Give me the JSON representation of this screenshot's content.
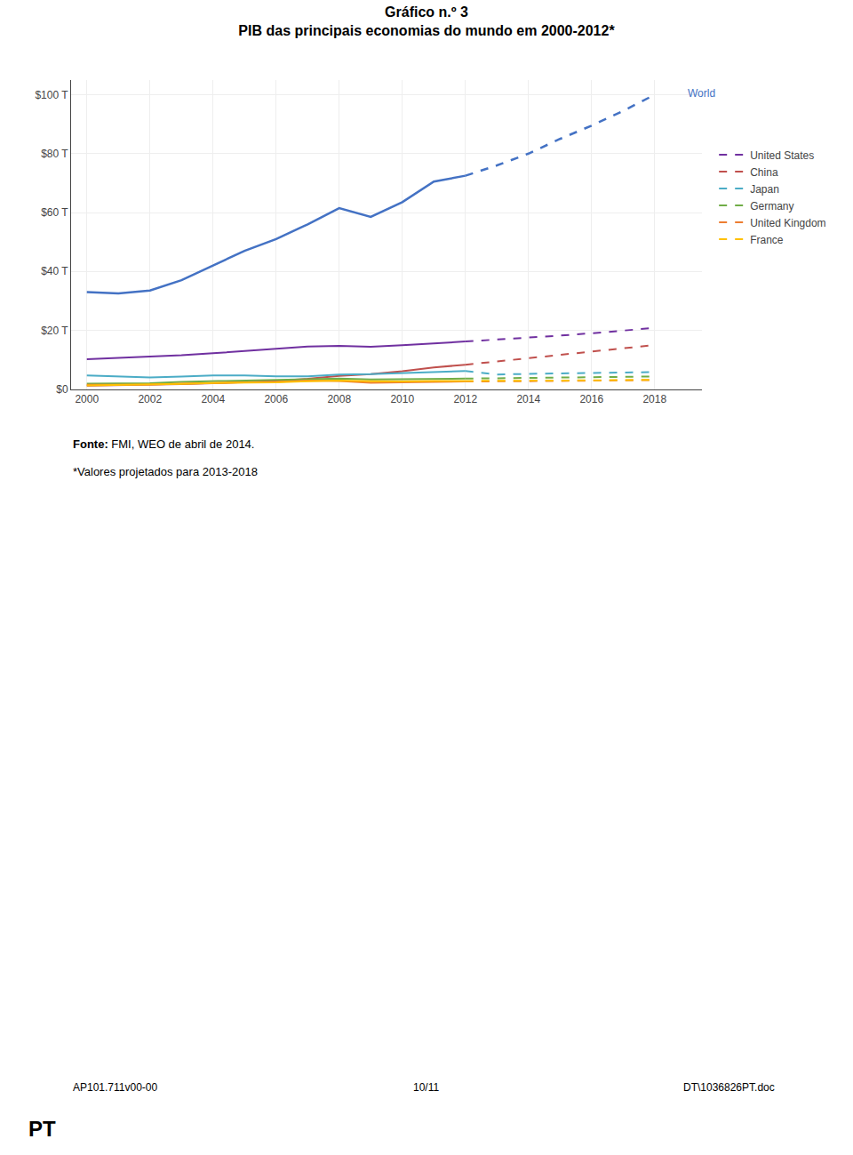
{
  "chart_data": {
    "type": "line",
    "title": "Gráfico n.º 3",
    "subtitle": "PIB das principais economias do mundo em 2000-2012*",
    "source_label": "Fonte:",
    "source": " FMI, WEO de abril de 2014.",
    "note": "*Valores projetados para 2013-2018",
    "footer_left": "AP101.711v00-00",
    "footer_center": "10/11",
    "footer_right": "DT\\1036826PT.doc",
    "footer_bottom": "PT",
    "x": [
      2000,
      2001,
      2002,
      2003,
      2004,
      2005,
      2006,
      2007,
      2008,
      2009,
      2010,
      2011,
      2012,
      2013,
      2014,
      2015,
      2016,
      2017,
      2018
    ],
    "series": [
      {
        "color": "#4472C4",
        "line_style": "solid",
        "values": [
          33.0,
          32.5,
          33.5,
          37.0,
          42.0,
          47.0,
          51.0,
          56.0,
          61.5,
          58.5,
          63.5,
          70.5,
          72.5,
          null,
          null,
          null,
          null,
          null,
          null
        ]
      },
      {
        "color": "#4472C4",
        "line_style": "dashed",
        "values": [
          null,
          null,
          null,
          null,
          null,
          null,
          null,
          null,
          null,
          null,
          null,
          null,
          72.5,
          76.0,
          80.0,
          85.0,
          89.5,
          94.5,
          100.0
        ]
      },
      {
        "name": "United States",
        "color": "#7030A0",
        "line_style": "solid",
        "values": [
          10.2,
          10.6,
          10.9,
          11.5,
          12.2,
          13.0,
          13.8,
          14.5,
          14.7,
          14.4,
          14.9,
          15.5,
          16.2,
          null,
          null,
          null,
          null,
          null,
          null
        ]
      },
      {
        "name": "United States",
        "color": "#7030A0",
        "line_style": "dashed",
        "values": [
          null,
          null,
          null,
          null,
          null,
          null,
          null,
          null,
          null,
          null,
          null,
          null,
          16.2,
          16.8,
          17.5,
          18.2,
          19.0,
          19.8,
          20.8
        ]
      },
      {
        "name": "China",
        "color": "#C0504D",
        "line_style": "solid",
        "values": [
          1.2,
          1.3,
          1.5,
          1.7,
          2.0,
          2.3,
          2.8,
          3.5,
          4.5,
          5.1,
          6.1,
          7.4,
          8.3,
          null,
          null,
          null,
          null,
          null,
          null
        ]
      },
      {
        "name": "China",
        "color": "#C0504D",
        "line_style": "dashed",
        "values": [
          null,
          null,
          null,
          null,
          null,
          null,
          null,
          null,
          null,
          null,
          null,
          null,
          8.3,
          9.4,
          10.5,
          11.8,
          12.8,
          13.8,
          15.0
        ]
      },
      {
        "name": "Japan",
        "color": "#4BACC6",
        "line_style": "solid",
        "values": [
          4.7,
          4.3,
          4.0,
          4.3,
          4.7,
          4.7,
          4.4,
          4.4,
          5.0,
          5.1,
          5.5,
          6.0,
          6.2,
          null,
          null,
          null,
          null,
          null,
          null
        ]
      },
      {
        "name": "Japan",
        "color": "#4BACC6",
        "line_style": "dashed",
        "values": [
          null,
          null,
          null,
          null,
          null,
          null,
          null,
          null,
          null,
          null,
          null,
          null,
          6.2,
          5.0,
          5.2,
          5.4,
          5.6,
          5.7,
          5.8
        ]
      },
      {
        "name": "Germany",
        "color": "#70AD47",
        "line_style": "solid",
        "values": [
          1.9,
          1.9,
          2.0,
          2.5,
          2.7,
          2.9,
          3.0,
          3.4,
          3.6,
          3.3,
          3.4,
          3.7,
          3.6,
          null,
          null,
          null,
          null,
          null,
          null
        ]
      },
      {
        "name": "Germany",
        "color": "#70AD47",
        "line_style": "dashed",
        "values": [
          null,
          null,
          null,
          null,
          null,
          null,
          null,
          null,
          null,
          null,
          null,
          null,
          3.6,
          3.7,
          3.9,
          4.0,
          4.1,
          4.2,
          4.3
        ]
      },
      {
        "name": "United Kingdom",
        "color": "#ED7D31",
        "line_style": "solid",
        "values": [
          1.5,
          1.5,
          1.6,
          1.9,
          2.2,
          2.3,
          2.5,
          2.9,
          2.8,
          2.2,
          2.3,
          2.5,
          2.6,
          null,
          null,
          null,
          null,
          null,
          null
        ]
      },
      {
        "name": "United Kingdom",
        "color": "#ED7D31",
        "line_style": "dashed",
        "values": [
          null,
          null,
          null,
          null,
          null,
          null,
          null,
          null,
          null,
          null,
          null,
          null,
          2.6,
          2.6,
          2.7,
          2.8,
          2.9,
          3.0,
          3.1
        ]
      },
      {
        "name": "France",
        "color": "#FFC000",
        "line_style": "solid",
        "values": [
          1.3,
          1.4,
          1.5,
          1.8,
          2.1,
          2.2,
          2.3,
          2.7,
          2.9,
          2.7,
          2.6,
          2.8,
          2.8,
          null,
          null,
          null,
          null,
          null,
          null
        ]
      },
      {
        "name": "France",
        "color": "#FFC000",
        "line_style": "dashed",
        "values": [
          null,
          null,
          null,
          null,
          null,
          null,
          null,
          null,
          null,
          null,
          null,
          null,
          2.8,
          2.8,
          2.9,
          3.0,
          3.0,
          3.1,
          3.2
        ]
      }
    ],
    "annotations": [
      {
        "text": "World",
        "x": 2019.0,
        "y": 100.5,
        "color": "#4472C4"
      }
    ],
    "xlim": [
      1999.5,
      2019.5
    ],
    "xticks": [
      2000,
      2002,
      2004,
      2006,
      2008,
      2010,
      2012,
      2014,
      2016,
      2018
    ],
    "ylim": [
      0,
      105
    ],
    "yticks": [
      {
        "value": 0,
        "label": "$0"
      },
      {
        "value": 20,
        "label": "$20 T"
      },
      {
        "value": 40,
        "label": "$40 T"
      },
      {
        "value": 60,
        "label": "$60 T"
      },
      {
        "value": 80,
        "label": "$80 T"
      },
      {
        "value": 100,
        "label": "$100 T"
      }
    ],
    "grid": true,
    "legend": "right"
  }
}
